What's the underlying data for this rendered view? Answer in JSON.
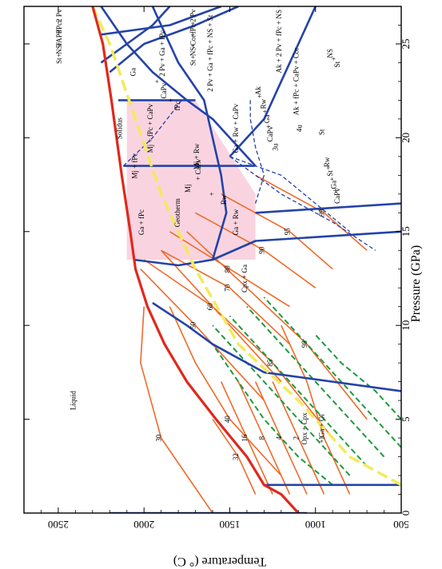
{
  "chart_data": {
    "type": "line",
    "rotated": true,
    "xlabel": "Pressure  (GPa)",
    "ylabel": "Temperature  (° C)",
    "xlim": [
      0,
      27
    ],
    "ylim": [
      500,
      2700
    ],
    "xticks": [
      "0",
      "5",
      "10",
      "15",
      "20",
      "25"
    ],
    "yticks": [
      "500",
      "1000",
      "1500",
      "2000",
      "2500"
    ],
    "colors": {
      "frame": "#000000",
      "phase_boundary": "#2443a8",
      "solidus": "#e0281c",
      "isopleth": "#ef6a2a",
      "adiabat": "#1e9a3c",
      "geotherm": "#f3ea5a",
      "shaded_field": "#f9d4e0"
    },
    "solidus": {
      "label": "Solidus",
      "points": [
        [
          0,
          1100
        ],
        [
          1,
          1200
        ],
        [
          1.5,
          1300
        ],
        [
          3,
          1400
        ],
        [
          5,
          1580
        ],
        [
          7,
          1750
        ],
        [
          9,
          1880
        ],
        [
          11,
          1980
        ],
        [
          13,
          2050
        ],
        [
          15,
          2080
        ],
        [
          18,
          2130
        ],
        [
          22,
          2190
        ],
        [
          25,
          2240
        ],
        [
          27,
          2300
        ]
      ]
    },
    "geotherm": {
      "label": "Geotherm",
      "points": [
        [
          1.5,
          500
        ],
        [
          3,
          800
        ],
        [
          6,
          1100
        ],
        [
          9,
          1450
        ],
        [
          13,
          1700
        ],
        [
          17,
          1900
        ],
        [
          21,
          2050
        ],
        [
          25,
          2200
        ],
        [
          27,
          2300
        ]
      ]
    },
    "shaded_field": {
      "points": [
        [
          13.5,
          2100
        ],
        [
          22,
          2100
        ],
        [
          22,
          1700
        ],
        [
          17,
          1350
        ],
        [
          16,
          1350
        ],
        [
          13.5,
          1350
        ]
      ]
    },
    "phase_boundaries": [
      {
        "points": [
          [
            0,
            2200
          ],
          [
            0,
            1050
          ]
        ]
      },
      {
        "points": [
          [
            1.5,
            500
          ],
          [
            1.5,
            1290
          ]
        ]
      },
      {
        "points": [
          [
            6.5,
            500
          ],
          [
            7.5,
            1300
          ],
          [
            9,
            1600
          ],
          [
            10,
            1750
          ],
          [
            11.2,
            1950
          ]
        ]
      },
      {
        "points": [
          [
            13.5,
            2060
          ],
          [
            13.2,
            1800
          ],
          [
            13.5,
            1600
          ],
          [
            14.5,
            1350
          ],
          [
            15,
            500
          ]
        ]
      },
      {
        "points": [
          [
            18.5,
            2120
          ],
          [
            18.5,
            1350
          ]
        ]
      },
      {
        "points": [
          [
            22,
            2150
          ],
          [
            22,
            1700
          ]
        ]
      },
      {
        "points": [
          [
            16,
            1350
          ],
          [
            16.5,
            500
          ]
        ]
      },
      {
        "points": [
          [
            13.5,
            1600
          ],
          [
            16,
            1520
          ],
          [
            18,
            1550
          ],
          [
            20,
            1600
          ],
          [
            22,
            1650
          ],
          [
            24,
            1800
          ],
          [
            26,
            1900
          ],
          [
            27,
            1950
          ]
        ]
      },
      {
        "points": [
          [
            18.5,
            1350
          ],
          [
            21,
            1600
          ],
          [
            22,
            1750
          ],
          [
            23.5,
            1950
          ],
          [
            25,
            2100
          ],
          [
            27,
            2250
          ]
        ]
      },
      {
        "points": [
          [
            19,
            1500
          ],
          [
            21,
            1300
          ],
          [
            23,
            1200
          ],
          [
            25,
            1100
          ],
          [
            27,
            1000
          ]
        ]
      },
      {
        "points": [
          [
            24,
            2250
          ],
          [
            25,
            2100
          ],
          [
            26,
            1950
          ],
          [
            27,
            1850
          ]
        ]
      },
      {
        "points": [
          [
            23.5,
            2200
          ],
          [
            25,
            2000
          ],
          [
            26,
            1700
          ],
          [
            27,
            1450
          ]
        ]
      },
      {
        "points": [
          [
            25.5,
            2250
          ],
          [
            26,
            1850
          ],
          [
            27,
            1550
          ]
        ]
      }
    ],
    "dashed_boundaries": [
      {
        "points": [
          [
            18.5,
            2120
          ],
          [
            20,
            1950
          ],
          [
            22,
            1780
          ]
        ]
      },
      {
        "points": [
          [
            16.5,
            1350
          ],
          [
            18,
            1300
          ],
          [
            19.5,
            1350
          ],
          [
            21,
            1380
          ],
          [
            22,
            1380
          ]
        ]
      },
      {
        "points": [
          [
            19,
            1500
          ],
          [
            18,
            1200
          ],
          [
            16.5,
            1000
          ],
          [
            15,
            800
          ]
        ]
      },
      {
        "points": [
          [
            19,
            1500
          ],
          [
            17,
            1200
          ],
          [
            15.5,
            900
          ],
          [
            14,
            650
          ]
        ]
      }
    ],
    "isopleths": [
      {
        "label": "30",
        "points": [
          [
            0,
            1600
          ],
          [
            4,
            1900
          ],
          [
            8,
            2020
          ],
          [
            11,
            2000
          ]
        ]
      },
      {
        "label": "50",
        "points": [
          [
            6,
            1300
          ],
          [
            10,
            1700
          ],
          [
            13,
            2020
          ]
        ]
      },
      {
        "label": "60",
        "points": [
          [
            7,
            1200
          ],
          [
            11,
            1600
          ],
          [
            13.5,
            2000
          ]
        ]
      },
      {
        "label": "70",
        "points": [
          [
            9,
            1150
          ],
          [
            12,
            1500
          ],
          [
            14,
            1900
          ]
        ]
      },
      {
        "label": "80",
        "points": [
          [
            11,
            1150
          ],
          [
            13,
            1500
          ],
          [
            15,
            1850
          ]
        ]
      },
      {
        "label": "90",
        "points": [
          [
            12,
            1000
          ],
          [
            14,
            1300
          ],
          [
            16,
            1700
          ]
        ]
      },
      {
        "label": "95",
        "points": [
          [
            13,
            900
          ],
          [
            15,
            1150
          ],
          [
            17,
            1550
          ]
        ]
      },
      {
        "label": "99",
        "points": [
          [
            14,
            700
          ],
          [
            16,
            950
          ],
          [
            18,
            1350
          ]
        ]
      },
      {
        "label": "40",
        "points": [
          [
            2,
            1200
          ],
          [
            5,
            1500
          ],
          [
            8,
            1700
          ],
          [
            11,
            1850
          ]
        ]
      },
      {
        "label": "85",
        "points": [
          [
            4,
            900
          ],
          [
            8,
            1250
          ],
          [
            11,
            1600
          ],
          [
            14,
            1900
          ]
        ]
      },
      {
        "label": "98",
        "points": [
          [
            5,
            700
          ],
          [
            9,
            1050
          ],
          [
            12,
            1400
          ],
          [
            15,
            1750
          ]
        ]
      },
      {
        "label": "1",
        "points": [
          [
            1,
            800
          ],
          [
            4,
            950
          ],
          [
            7,
            1050
          ],
          [
            10,
            1200
          ]
        ]
      },
      {
        "label": "2",
        "points": [
          [
            1,
            950
          ],
          [
            4,
            1100
          ],
          [
            7,
            1250
          ]
        ]
      },
      {
        "label": "4",
        "points": [
          [
            1,
            1050
          ],
          [
            4,
            1200
          ],
          [
            7,
            1350
          ]
        ]
      },
      {
        "label": "8",
        "points": [
          [
            1,
            1150
          ],
          [
            4,
            1300
          ],
          [
            7,
            1450
          ]
        ]
      },
      {
        "label": "16",
        "points": [
          [
            1,
            1250
          ],
          [
            4,
            1400
          ],
          [
            7,
            1550
          ]
        ]
      },
      {
        "label": "32",
        "points": [
          [
            1,
            1350
          ],
          [
            3,
            1450
          ],
          [
            5,
            1600
          ]
        ]
      }
    ],
    "adiabats": [
      {
        "points": [
          [
            1.5,
            900
          ],
          [
            3,
            1100
          ],
          [
            5,
            1300
          ],
          [
            7,
            1450
          ],
          [
            9,
            1600
          ]
        ]
      },
      {
        "points": [
          [
            2,
            800
          ],
          [
            4,
            1000
          ],
          [
            6,
            1200
          ],
          [
            8,
            1400
          ],
          [
            10,
            1600
          ]
        ]
      },
      {
        "points": [
          [
            2.5,
            700
          ],
          [
            4.5,
            900
          ],
          [
            6.5,
            1100
          ],
          [
            8.5,
            1300
          ],
          [
            10.5,
            1500
          ]
        ]
      },
      {
        "points": [
          [
            3,
            600
          ],
          [
            5,
            800
          ],
          [
            7,
            1000
          ],
          [
            9,
            1200
          ],
          [
            11,
            1400
          ]
        ]
      },
      {
        "points": [
          [
            3.5,
            500
          ],
          [
            5.5,
            700
          ],
          [
            7.5,
            900
          ],
          [
            9.5,
            1100
          ],
          [
            11.5,
            1300
          ]
        ]
      },
      {
        "points": [
          [
            5,
            500
          ],
          [
            6.5,
            650
          ],
          [
            8,
            850
          ],
          [
            9.5,
            1000
          ]
        ]
      }
    ],
    "field_labels": [
      {
        "text": "Liquid",
        "at": [
          6,
          2400
        ]
      },
      {
        "text": "Solidus",
        "at": [
          20.5,
          2130
        ]
      },
      {
        "text": "Geotherm",
        "at": [
          16,
          1790
        ]
      },
      {
        "text": "Cpx + Ga",
        "at": [
          12.5,
          1400
        ]
      },
      {
        "text": "Opx + Cpx",
        "at": [
          4.5,
          1050
        ]
      },
      {
        "text": "+ Ga + Ol",
        "at": [
          4.5,
          950
        ]
      },
      {
        "text": "Ga + fPc",
        "at": [
          15.5,
          2000
        ]
      },
      {
        "text": "Ga + Rw",
        "at": [
          15.5,
          1450
        ]
      },
      {
        "text": "Mj + fPc",
        "at": [
          18.5,
          2040
        ]
      },
      {
        "text": "Mj + fPc + CaPv",
        "at": [
          20.5,
          1950
        ]
      },
      {
        "text": "Mj + Rw",
        "at": [
          19,
          1680
        ]
      },
      {
        "text": "+ CaPv",
        "at": [
          18.3,
          1670
        ]
      },
      {
        "text": "Mj",
        "at": [
          17.3,
          1730
        ]
      },
      {
        "text": "+",
        "at": [
          17,
          1590
        ]
      },
      {
        "text": "Rw",
        "at": [
          16.7,
          1520
        ]
      },
      {
        "text": "Ga + Rw + CaPv",
        "at": [
          20.5,
          1450
        ]
      },
      {
        "text": "Ga",
        "at": [
          23.5,
          2050
        ]
      },
      {
        "text": "+",
        "at": [
          23,
          1910
        ]
      },
      {
        "text": "CaPv",
        "at": [
          22.5,
          1870
        ]
      },
      {
        "text": "+",
        "at": [
          22,
          1830
        ]
      },
      {
        "text": "fPc",
        "at": [
          21.7,
          1790
        ]
      },
      {
        "text": "Ak",
        "at": [
          22.5,
          1320
        ]
      },
      {
        "text": "+",
        "at": [
          22.2,
          1310
        ]
      },
      {
        "text": "Rw",
        "at": [
          21.8,
          1290
        ]
      },
      {
        "text": "+",
        "at": [
          21.4,
          1280
        ]
      },
      {
        "text": "Ga",
        "at": [
          21,
          1270
        ]
      },
      {
        "text": "+",
        "at": [
          20.6,
          1260
        ]
      },
      {
        "text": "CaPv",
        "at": [
          20.2,
          1250
        ]
      },
      {
        "text": "St",
        "at": [
          20.3,
          950
        ]
      },
      {
        "text": "Rw",
        "at": [
          18.7,
          920
        ]
      },
      {
        "text": "+",
        "at": [
          18.4,
          910
        ]
      },
      {
        "text": "St",
        "at": [
          18.1,
          900
        ]
      },
      {
        "text": "+",
        "at": [
          17.8,
          890
        ]
      },
      {
        "text": "Ga",
        "at": [
          17.5,
          880
        ]
      },
      {
        "text": "+",
        "at": [
          17.2,
          870
        ]
      },
      {
        "text": "CaPv",
        "at": [
          16.9,
          860
        ]
      },
      {
        "text": "Ak + 2 Pv + fPc + NS + St",
        "at": [
          25.5,
          1200
        ]
      },
      {
        "text": "Ak + fPc + CaPv + Cor",
        "at": [
          23,
          1100
        ]
      },
      {
        "text": "NS",
        "at": [
          24.5,
          900
        ]
      },
      {
        "text": "+",
        "at": [
          24.2,
          880
        ]
      },
      {
        "text": "St",
        "at": [
          23.9,
          860
        ]
      },
      {
        "text": "2 Pv",
        "at": [
          26.5,
          1700
        ]
      },
      {
        "text": "+",
        "at": [
          26.1,
          1700
        ]
      },
      {
        "text": "fPc",
        "at": [
          25.8,
          1700
        ]
      },
      {
        "text": "+",
        "at": [
          25.5,
          1700
        ]
      },
      {
        "text": "Cor",
        "at": [
          25.2,
          1700
        ]
      },
      {
        "text": "+",
        "at": [
          24.9,
          1700
        ]
      },
      {
        "text": "NS",
        "at": [
          24.6,
          1700
        ]
      },
      {
        "text": "+",
        "at": [
          24.3,
          1700
        ]
      },
      {
        "text": "St",
        "at": [
          24,
          1700
        ]
      },
      {
        "text": "2 Pv + Ga + fPc + NS + St",
        "at": [
          24.5,
          1600
        ]
      },
      {
        "text": "2 Pv + Ga + fPc",
        "at": [
          24.5,
          1880
        ]
      },
      {
        "text": "2 Pv",
        "at": [
          26.5,
          2480
        ]
      },
      {
        "text": "+",
        "at": [
          26.2,
          2480
        ]
      },
      {
        "text": "fPc",
        "at": [
          25.9,
          2480
        ]
      },
      {
        "text": "+",
        "at": [
          25.6,
          2480
        ]
      },
      {
        "text": "TAPP",
        "at": [
          25.3,
          2480
        ]
      },
      {
        "text": "+",
        "at": [
          25,
          2480
        ]
      },
      {
        "text": "NS",
        "at": [
          24.7,
          2480
        ]
      },
      {
        "text": "+",
        "at": [
          24.4,
          2480
        ]
      },
      {
        "text": "St",
        "at": [
          24.1,
          2480
        ]
      },
      {
        "text": "3u",
        "at": [
          19.5,
          1220
        ]
      },
      {
        "text": "4u",
        "at": [
          20.5,
          1080
        ]
      }
    ]
  }
}
